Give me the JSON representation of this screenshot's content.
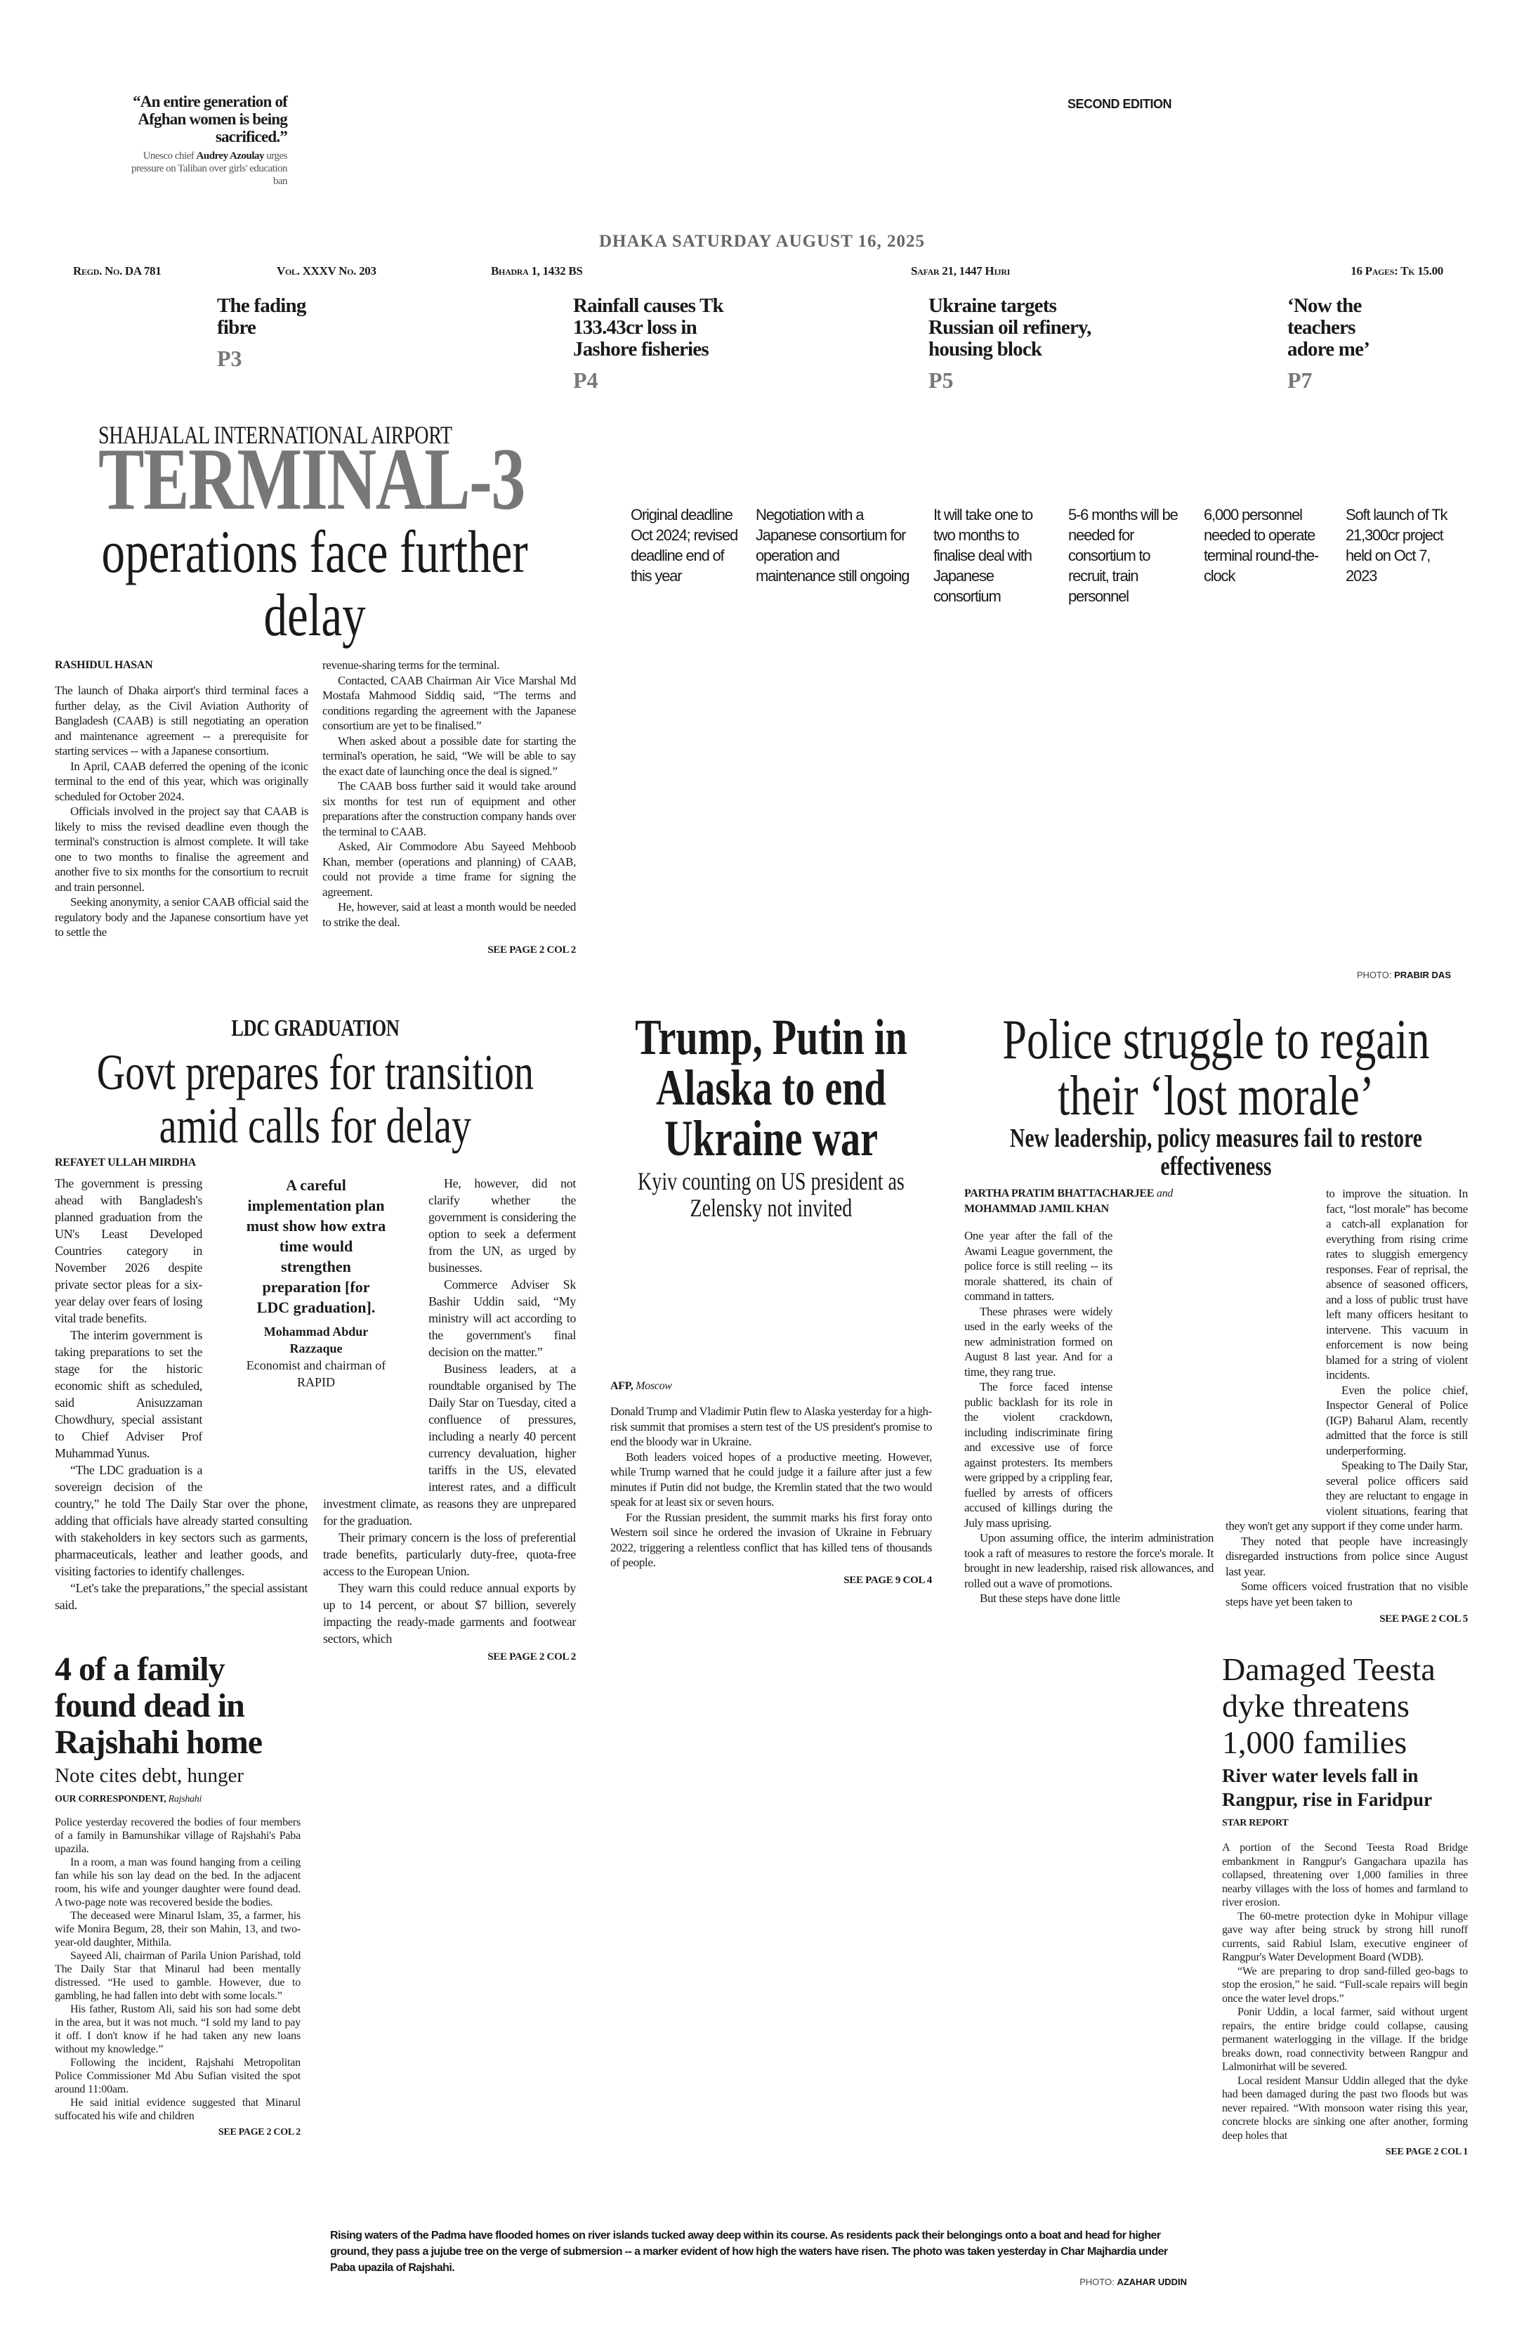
{
  "masthead": {
    "quote": "“An entire generation of Afghan women is being sacrificed.”",
    "quote_caption_pre": "Unesco chief ",
    "quote_caption_name": "Audrey Azoulay",
    "quote_caption_post": " urges pressure on Taliban over girls' education ban",
    "edition": "SECOND EDITION",
    "date": "DHAKA SATURDAY AUGUST 16, 2025",
    "regd": "Regd. No. DA 781",
    "volume": "Vol. XXXV No. 203",
    "bangla_date": "Bhadra 1, 1432 BS",
    "hijri_date": "Safar 21, 1447 Hijri",
    "pages_price": "16 Pages: Tk 15.00"
  },
  "teasers": [
    {
      "headline": "The fading fibre",
      "page": "P3"
    },
    {
      "headline": "Rainfall causes Tk 133.43cr loss in Jashore fisheries",
      "page": "P4"
    },
    {
      "headline": "Ukraine targets Russian oil refinery, housing block",
      "page": "P5"
    },
    {
      "headline": "‘Now the teachers adore me’",
      "page": "P7"
    }
  ],
  "terminal": {
    "kicker": "SHAHJALAL INTERNATIONAL AIRPORT",
    "headline_big": "TERMINAL-3",
    "headline": "operations face further delay",
    "facts": [
      "Original deadline Oct 2024; revised deadline end of this year",
      "Negotiation with a Japanese consortium for operation and maintenance still ongoing",
      "It will take one to two months to finalise deal with Japanese consortium",
      "5-6 months will be needed for consortium to recruit, train personnel",
      "6,000 personnel needed to operate terminal round-the-clock",
      "Soft launch of Tk 21,300cr project held on Oct 7, 2023"
    ],
    "photo_credit_label": "PHOTO: ",
    "photo_credit_name": "PRABIR DAS",
    "byline": "RASHIDUL HASAN",
    "columns": [
      [
        "The launch of Dhaka airport's third terminal faces a further delay, as the Civil Aviation Authority of Bangladesh (CAAB) is still negotiating an operation and maintenance agreement -- a prerequisite for starting services -- with a Japanese consortium.",
        "In April, CAAB deferred the opening of the iconic terminal to the end of this year, which was originally scheduled for October 2024.",
        "Officials involved in the project say that CAAB is likely to miss the revised deadline even though the terminal's construction is almost complete. It will take one to two months to finalise the agreement and another five to six months for the consortium to recruit and train personnel.",
        "Seeking anonymity, a senior CAAB official said the regulatory body and the Japanese consortium have yet to settle the"
      ],
      [
        "revenue-sharing terms for the terminal.",
        "Contacted, CAAB Chairman Air Vice Marshal Md Mostafa Mahmood Siddiq said, “The terms and conditions regarding the agreement with the Japanese consortium are yet to be finalised.”",
        "When asked about a possible date for starting the terminal's operation, he said, “We will be able to say the exact date of launching once the deal is signed.”",
        "The CAAB boss further said it would take around six months for test run of equipment and other preparations after the construction company hands over the terminal to CAAB.",
        "Asked, Air Commodore Abu Sayeed Mehboob Khan, member (operations and planning) of CAAB, could not provide a time frame for signing the agreement.",
        "He, however, said at least a month would be needed to strike the deal."
      ]
    ],
    "see_page": "SEE PAGE 2 COL 2"
  },
  "ldc": {
    "kicker": "LDC GRADUATION",
    "headline": "Govt prepares for transition amid calls for delay",
    "byline": "REFAYET ULLAH MIRDHA",
    "pull_quote": "A careful implementation plan must show how extra time would strengthen preparation [for LDC graduation].",
    "pull_quote_name": "Mohammad Abdur Razzaque",
    "pull_quote_title": "Economist and chairman of RAPID",
    "columns": [
      [
        "The government is pressing ahead with Bangladesh's planned graduation from the UN's Least Developed Countries category in November 2026 despite private sector pleas for a six-year delay over fears of losing vital trade benefits.",
        "The interim government is taking preparations to set the stage for the historic economic shift as scheduled, said Anisuzzaman Chowdhury, special assistant to Chief Adviser Prof Muhammad Yunus.",
        "“The LDC graduation is a sovereign decision of the country,” he told The Daily Star over the phone, adding that officials have already started consulting with stakeholders in key sectors such as garments, pharmaceuticals, leather and leather goods, and visiting factories to identify challenges.",
        "“Let's take the preparations,” the special assistant said."
      ],
      [
        "He, however, did not clarify whether the government is considering the option to seek a deferment from the UN, as urged by businesses.",
        "Commerce Adviser Sk Bashir Uddin said, “My ministry will act according to the government's final decision on the matter.”",
        "Business leaders, at a roundtable organised by The Daily Star on Tuesday, cited a confluence of pressures, including a nearly 40 percent currency devaluation, higher tariffs in the US, elevated interest rates, and a difficult investment climate, as reasons they are unprepared for the graduation.",
        "Their primary concern is the loss of preferential trade benefits, particularly duty-free, quota-free access to the European Union.",
        "They warn this could reduce annual exports by up to 14 percent, or about $7 billion, severely impacting the ready-made garments and footwear sectors, which"
      ]
    ],
    "see_page": "SEE PAGE 2 COL 2"
  },
  "trump": {
    "headline": "Trump, Putin in Alaska to end Ukraine war",
    "subhead": "Kyiv counting on US president as Zelensky not invited",
    "byline_agency": "AFP,",
    "byline_place": "Moscow",
    "columns": [
      [
        "Donald Trump and Vladimir Putin flew to Alaska yesterday for a high-risk summit that promises a stern test of the US president's promise to end the bloody war in Ukraine.",
        "Both leaders voiced hopes of a productive meeting. However, while Trump warned that he could judge it a failure after just a few minutes if Putin did not budge, the Kremlin stated that the two would speak for at least six or seven hours.",
        "For the Russian president, the summit marks his first foray onto Western soil since he ordered the invasion of Ukraine in February 2022, triggering a relentless conflict that has killed tens of thousands of people."
      ]
    ],
    "see_page": "SEE PAGE 9 COL 4"
  },
  "police": {
    "headline": "Police struggle to regain their ‘lost morale’",
    "subhead": "New leadership, policy measures fail to restore effectiveness",
    "byline_1": "PARTHA PRATIM BHATTACHARJEE",
    "byline_and": "and",
    "byline_2": "MOHAMMAD JAMIL KHAN",
    "columns": [
      [
        "One year after the fall of the Awami League government, the police force is still reeling -- its morale shattered, its chain of command in tatters.",
        "These phrases were widely used in the early weeks of the new administration formed on August 8 last year. And for a time, they rang true.",
        "The force faced intense public backlash for its role in the violent crackdown, including indiscriminate firing and excessive use of force against protesters. Its members were gripped by a crippling fear, fuelled by arrests of officers accused of killings during the July mass uprising.",
        "Upon assuming office, the interim administration took a raft of measures to restore the force's morale. It brought in new leadership, raised risk allowances, and rolled out a wave of promotions.",
        "But these steps have done little"
      ],
      [
        "to improve the situation. In fact, “lost morale” has become a catch-all explanation for everything from rising crime rates to sluggish emergency responses. Fear of reprisal, the absence of seasoned officers, and a loss of public trust have left many officers hesitant to intervene. This vacuum in enforcement is now being blamed for a string of violent incidents.",
        "Even the police chief, Inspector General of Police (IGP) Baharul Alam, recently admitted that the force is still underperforming.",
        "Speaking to The Daily Star, several police officers said they are reluctant to engage in violent situations, fearing that they won't get any support if they come under harm.",
        "They noted that people have increasingly disregarded instructions from police since August last year.",
        "Some officers voiced frustration that no visible steps have yet been taken to"
      ]
    ],
    "see_page": "SEE PAGE 2 COL 5"
  },
  "rajshahi": {
    "headline": "4 of a family found dead in Rajshahi home",
    "subhead": "Note cites debt, hunger",
    "byline": "OUR CORRESPONDENT,",
    "byline_place": "Rajshahi",
    "columns": [
      [
        "Police yesterday recovered the bodies of four members of a family in Bamunshikar village of Rajshahi's Paba upazila.",
        "In a room, a man was found hanging from a ceiling fan while his son lay dead on the bed. In the adjacent room, his wife and younger daughter were found dead. A two-page note was recovered beside the bodies.",
        "The deceased were Minarul Islam, 35, a farmer, his wife Monira Begum, 28, their son Mahin, 13, and two-year-old daughter, Mithila.",
        "Sayeed Ali, chairman of Parila Union Parishad, told The Daily Star that Minarul had been mentally distressed. “He used to gamble. However, due to gambling, he had fallen into debt with some locals.”",
        "His father, Rustom Ali, said his son had some debt in the area, but it was not much. “I sold my land to pay it off. I don't know if he had taken any new loans without my knowledge.”",
        "Following the incident, Rajshahi Metropolitan Police Commissioner Md Abu Sufian visited the spot around 11:00am.",
        "He said initial evidence suggested that Minarul suffocated his wife and children"
      ]
    ],
    "see_page": "SEE PAGE 2 COL 2"
  },
  "photo_caption": {
    "text": "Rising waters of the Padma have flooded homes on river islands tucked away deep within its course. As residents pack their belongings onto a boat and head for higher ground, they pass a jujube tree on the verge of submersion -- a marker evident of how high the waters have risen. The photo was taken yesterday in Char Majhardia under Paba upazila of Rajshahi.",
    "credit_label": "PHOTO: ",
    "credit_name": "AZAHAR UDDIN"
  },
  "teesta": {
    "headline": "Damaged Teesta dyke threatens 1,000 families",
    "subhead": "River water levels fall in Rangpur, rise in Faridpur",
    "byline": "STAR REPORT",
    "columns": [
      [
        "A portion of the Second Teesta Road Bridge embankment in Rangpur's Gangachara upazila has collapsed, threatening over 1,000 families in three nearby villages with the loss of homes and farmland to river erosion.",
        "The 60-metre protection dyke in Mohipur village gave way after being struck by strong hill runoff currents, said Rabiul Islam, executive engineer of Rangpur's Water Development Board (WDB).",
        "“We are preparing to drop sand-filled geo-bags to stop the erosion,” he said. “Full-scale repairs will begin once the water level drops.”",
        "Ponir Uddin, a local farmer, said without urgent repairs, the entire bridge could collapse, causing permanent waterlogging in the village. If the bridge breaks down, road connectivity between Rangpur and Lalmonirhat will be severed.",
        "Local resident Mansur Uddin alleged that the dyke had been damaged during the past two floods but was never repaired. “With monsoon water rising this year, concrete blocks are sinking one after another, forming deep holes that"
      ]
    ],
    "see_page": "SEE PAGE 2 COL 1"
  },
  "colors": {
    "text": "#1a1a1a",
    "muted": "#777777",
    "date": "#666666"
  }
}
